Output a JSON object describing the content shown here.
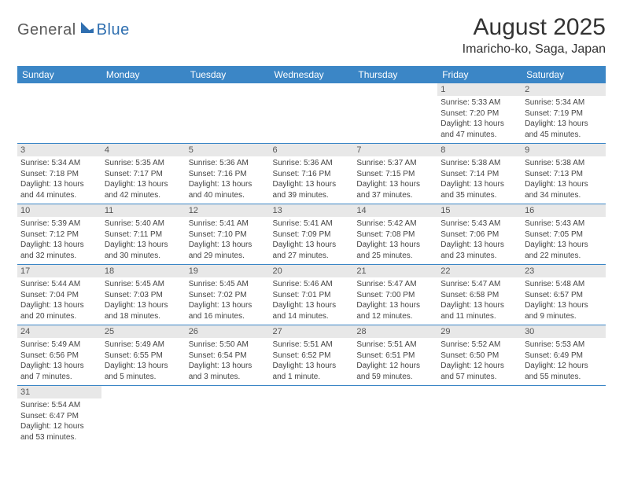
{
  "logo": {
    "text1": "General",
    "text2": "Blue"
  },
  "title": "August 2025",
  "location": "Imaricho-ko, Saga, Japan",
  "colors": {
    "header_bg": "#3b86c6",
    "header_text": "#ffffff",
    "daynum_bg": "#e8e8e8",
    "cell_border": "#3b86c6",
    "logo_gray": "#5a5a5a",
    "logo_blue": "#2f6fb0"
  },
  "fonts": {
    "title_size": 30,
    "location_size": 16,
    "header_size": 12,
    "daynum_size": 11,
    "body_size": 10
  },
  "day_headers": [
    "Sunday",
    "Monday",
    "Tuesday",
    "Wednesday",
    "Thursday",
    "Friday",
    "Saturday"
  ],
  "weeks": [
    [
      null,
      null,
      null,
      null,
      null,
      {
        "n": "1",
        "sr": "Sunrise: 5:33 AM",
        "ss": "Sunset: 7:20 PM",
        "dl1": "Daylight: 13 hours",
        "dl2": "and 47 minutes."
      },
      {
        "n": "2",
        "sr": "Sunrise: 5:34 AM",
        "ss": "Sunset: 7:19 PM",
        "dl1": "Daylight: 13 hours",
        "dl2": "and 45 minutes."
      }
    ],
    [
      {
        "n": "3",
        "sr": "Sunrise: 5:34 AM",
        "ss": "Sunset: 7:18 PM",
        "dl1": "Daylight: 13 hours",
        "dl2": "and 44 minutes."
      },
      {
        "n": "4",
        "sr": "Sunrise: 5:35 AM",
        "ss": "Sunset: 7:17 PM",
        "dl1": "Daylight: 13 hours",
        "dl2": "and 42 minutes."
      },
      {
        "n": "5",
        "sr": "Sunrise: 5:36 AM",
        "ss": "Sunset: 7:16 PM",
        "dl1": "Daylight: 13 hours",
        "dl2": "and 40 minutes."
      },
      {
        "n": "6",
        "sr": "Sunrise: 5:36 AM",
        "ss": "Sunset: 7:16 PM",
        "dl1": "Daylight: 13 hours",
        "dl2": "and 39 minutes."
      },
      {
        "n": "7",
        "sr": "Sunrise: 5:37 AM",
        "ss": "Sunset: 7:15 PM",
        "dl1": "Daylight: 13 hours",
        "dl2": "and 37 minutes."
      },
      {
        "n": "8",
        "sr": "Sunrise: 5:38 AM",
        "ss": "Sunset: 7:14 PM",
        "dl1": "Daylight: 13 hours",
        "dl2": "and 35 minutes."
      },
      {
        "n": "9",
        "sr": "Sunrise: 5:38 AM",
        "ss": "Sunset: 7:13 PM",
        "dl1": "Daylight: 13 hours",
        "dl2": "and 34 minutes."
      }
    ],
    [
      {
        "n": "10",
        "sr": "Sunrise: 5:39 AM",
        "ss": "Sunset: 7:12 PM",
        "dl1": "Daylight: 13 hours",
        "dl2": "and 32 minutes."
      },
      {
        "n": "11",
        "sr": "Sunrise: 5:40 AM",
        "ss": "Sunset: 7:11 PM",
        "dl1": "Daylight: 13 hours",
        "dl2": "and 30 minutes."
      },
      {
        "n": "12",
        "sr": "Sunrise: 5:41 AM",
        "ss": "Sunset: 7:10 PM",
        "dl1": "Daylight: 13 hours",
        "dl2": "and 29 minutes."
      },
      {
        "n": "13",
        "sr": "Sunrise: 5:41 AM",
        "ss": "Sunset: 7:09 PM",
        "dl1": "Daylight: 13 hours",
        "dl2": "and 27 minutes."
      },
      {
        "n": "14",
        "sr": "Sunrise: 5:42 AM",
        "ss": "Sunset: 7:08 PM",
        "dl1": "Daylight: 13 hours",
        "dl2": "and 25 minutes."
      },
      {
        "n": "15",
        "sr": "Sunrise: 5:43 AM",
        "ss": "Sunset: 7:06 PM",
        "dl1": "Daylight: 13 hours",
        "dl2": "and 23 minutes."
      },
      {
        "n": "16",
        "sr": "Sunrise: 5:43 AM",
        "ss": "Sunset: 7:05 PM",
        "dl1": "Daylight: 13 hours",
        "dl2": "and 22 minutes."
      }
    ],
    [
      {
        "n": "17",
        "sr": "Sunrise: 5:44 AM",
        "ss": "Sunset: 7:04 PM",
        "dl1": "Daylight: 13 hours",
        "dl2": "and 20 minutes."
      },
      {
        "n": "18",
        "sr": "Sunrise: 5:45 AM",
        "ss": "Sunset: 7:03 PM",
        "dl1": "Daylight: 13 hours",
        "dl2": "and 18 minutes."
      },
      {
        "n": "19",
        "sr": "Sunrise: 5:45 AM",
        "ss": "Sunset: 7:02 PM",
        "dl1": "Daylight: 13 hours",
        "dl2": "and 16 minutes."
      },
      {
        "n": "20",
        "sr": "Sunrise: 5:46 AM",
        "ss": "Sunset: 7:01 PM",
        "dl1": "Daylight: 13 hours",
        "dl2": "and 14 minutes."
      },
      {
        "n": "21",
        "sr": "Sunrise: 5:47 AM",
        "ss": "Sunset: 7:00 PM",
        "dl1": "Daylight: 13 hours",
        "dl2": "and 12 minutes."
      },
      {
        "n": "22",
        "sr": "Sunrise: 5:47 AM",
        "ss": "Sunset: 6:58 PM",
        "dl1": "Daylight: 13 hours",
        "dl2": "and 11 minutes."
      },
      {
        "n": "23",
        "sr": "Sunrise: 5:48 AM",
        "ss": "Sunset: 6:57 PM",
        "dl1": "Daylight: 13 hours",
        "dl2": "and 9 minutes."
      }
    ],
    [
      {
        "n": "24",
        "sr": "Sunrise: 5:49 AM",
        "ss": "Sunset: 6:56 PM",
        "dl1": "Daylight: 13 hours",
        "dl2": "and 7 minutes."
      },
      {
        "n": "25",
        "sr": "Sunrise: 5:49 AM",
        "ss": "Sunset: 6:55 PM",
        "dl1": "Daylight: 13 hours",
        "dl2": "and 5 minutes."
      },
      {
        "n": "26",
        "sr": "Sunrise: 5:50 AM",
        "ss": "Sunset: 6:54 PM",
        "dl1": "Daylight: 13 hours",
        "dl2": "and 3 minutes."
      },
      {
        "n": "27",
        "sr": "Sunrise: 5:51 AM",
        "ss": "Sunset: 6:52 PM",
        "dl1": "Daylight: 13 hours",
        "dl2": "and 1 minute."
      },
      {
        "n": "28",
        "sr": "Sunrise: 5:51 AM",
        "ss": "Sunset: 6:51 PM",
        "dl1": "Daylight: 12 hours",
        "dl2": "and 59 minutes."
      },
      {
        "n": "29",
        "sr": "Sunrise: 5:52 AM",
        "ss": "Sunset: 6:50 PM",
        "dl1": "Daylight: 12 hours",
        "dl2": "and 57 minutes."
      },
      {
        "n": "30",
        "sr": "Sunrise: 5:53 AM",
        "ss": "Sunset: 6:49 PM",
        "dl1": "Daylight: 12 hours",
        "dl2": "and 55 minutes."
      }
    ],
    [
      {
        "n": "31",
        "sr": "Sunrise: 5:54 AM",
        "ss": "Sunset: 6:47 PM",
        "dl1": "Daylight: 12 hours",
        "dl2": "and 53 minutes."
      },
      null,
      null,
      null,
      null,
      null,
      null
    ]
  ]
}
